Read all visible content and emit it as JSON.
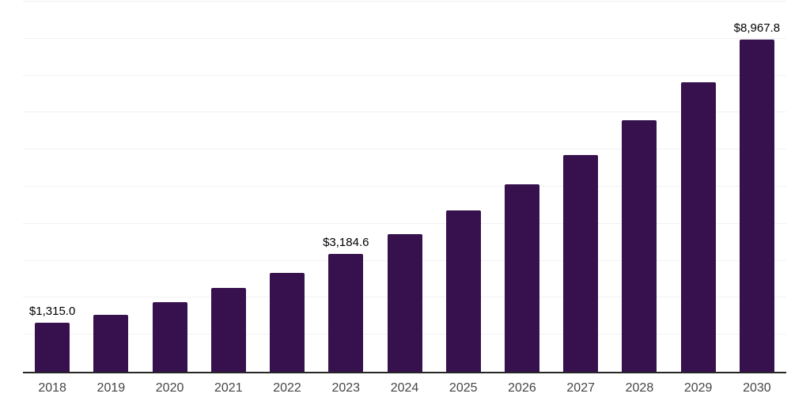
{
  "chart_data": {
    "type": "bar",
    "title": "",
    "xlabel": "",
    "ylabel": "",
    "categories": [
      "2018",
      "2019",
      "2020",
      "2021",
      "2022",
      "2023",
      "2024",
      "2025",
      "2026",
      "2027",
      "2028",
      "2029",
      "2030"
    ],
    "values": [
      1315.0,
      1540,
      1875,
      2270,
      2680,
      3184.6,
      3725,
      4360,
      5060,
      5860,
      6800,
      7820,
      8967.8
    ],
    "value_labels": {
      "2018": "$1,315.0",
      "2023": "$3,184.6",
      "2030": "$8,967.8"
    },
    "ylim": [
      0,
      10000
    ],
    "gridline_interval": 1000,
    "grid": "horizontal-only",
    "legend": "none",
    "colors": {
      "bar": "#36114d",
      "gridline": "#f1f1f1",
      "axis_line": "#262626",
      "tick_label": "#454545",
      "value_label": "#000000",
      "background": "#ffffff"
    }
  }
}
